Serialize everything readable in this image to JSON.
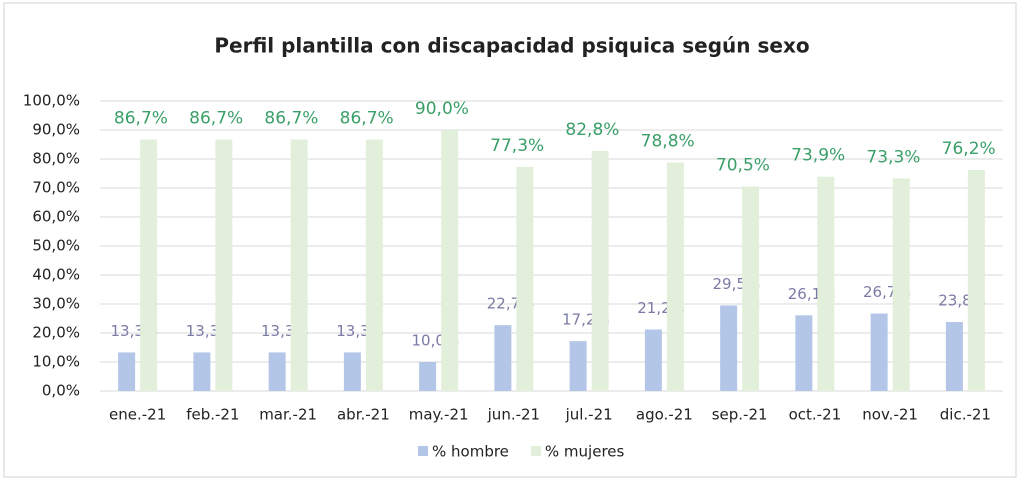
{
  "chart_data": {
    "type": "bar",
    "title": "Perfil plantilla con discapacidad  psiquica según sexo",
    "categories": [
      "ene.-21",
      "feb.-21",
      "mar.-21",
      "abr.-21",
      "may.-21",
      "jun.-21",
      "jul.-21",
      "ago.-21",
      "sep.-21",
      "oct.-21",
      "nov.-21",
      "dic.-21"
    ],
    "series": [
      {
        "name": "% hombre",
        "color": "#b4c6e7",
        "label_color": "#7b7ba6",
        "values": [
          13.3,
          13.3,
          13.3,
          13.3,
          10.0,
          22.7,
          17.2,
          21.2,
          29.5,
          26.1,
          26.7,
          23.8
        ],
        "value_labels": [
          "13,3%",
          "13,3%",
          "13,3%",
          "13,3%",
          "10,0%",
          "22,7%",
          "17,2%",
          "21,2%",
          "29,5%",
          "26,1%",
          "26,7%",
          "23,8%"
        ]
      },
      {
        "name": "% mujeres",
        "color": "#e2efda",
        "label_color": "#3a9f68",
        "values": [
          86.7,
          86.7,
          86.7,
          86.7,
          90.0,
          77.3,
          82.8,
          78.8,
          70.5,
          73.9,
          73.3,
          76.2
        ],
        "value_labels": [
          "86,7%",
          "86,7%",
          "86,7%",
          "86,7%",
          "90,0%",
          "77,3%",
          "82,8%",
          "78,8%",
          "70,5%",
          "73,9%",
          "73,3%",
          "76,2%"
        ]
      }
    ],
    "ylim": [
      0,
      100
    ],
    "yticks": [
      {
        "value": 0,
        "label": "0,0%"
      },
      {
        "value": 10,
        "label": "10,0%"
      },
      {
        "value": 20,
        "label": "20,0%"
      },
      {
        "value": 30,
        "label": "30,0%"
      },
      {
        "value": 40,
        "label": "40,0%"
      },
      {
        "value": 50,
        "label": "50,0%"
      },
      {
        "value": 60,
        "label": "60,0%"
      },
      {
        "value": 70,
        "label": "70,0%"
      },
      {
        "value": 80,
        "label": "80,0%"
      },
      {
        "value": 90,
        "label": "90,0%"
      },
      {
        "value": 100,
        "label": "100,0%"
      }
    ],
    "grid": true,
    "legend": "bottom"
  }
}
